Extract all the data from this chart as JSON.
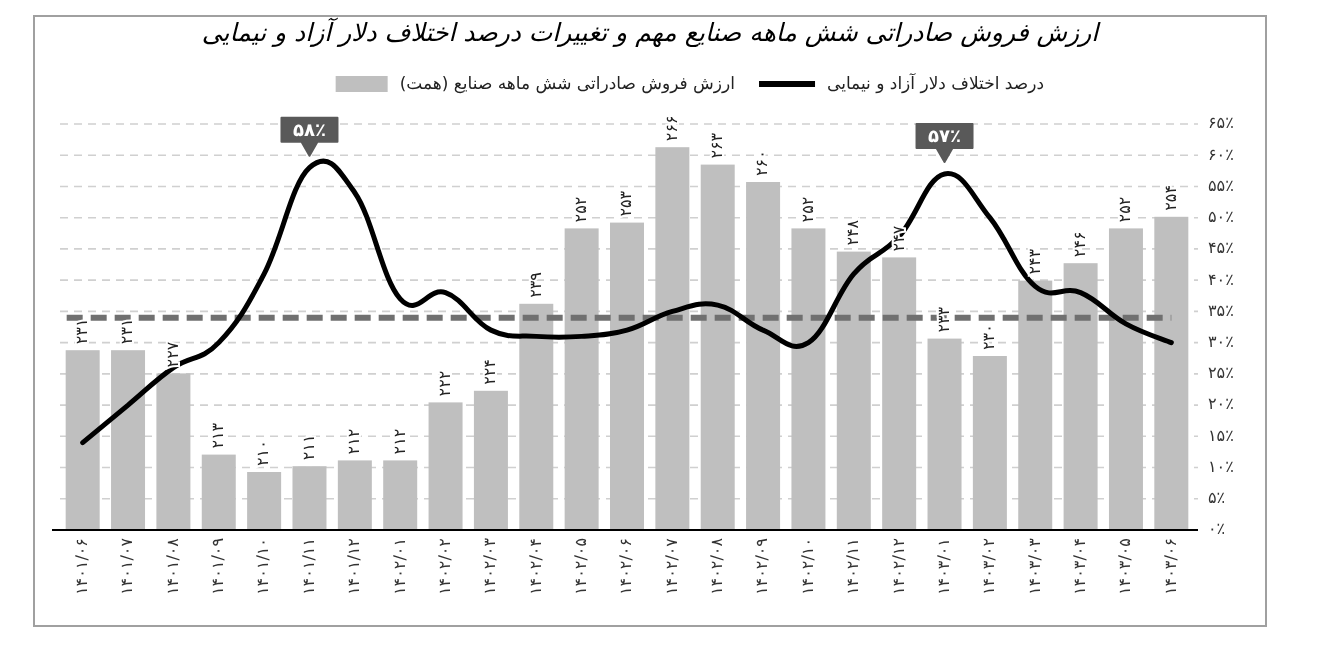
{
  "chart_data": {
    "type": "bar",
    "title": "ارزش فروش صادراتی شش ماهه صنایع مهم و تغییرات درصد اختلاف دلار آزاد و نیمایی",
    "categories": [
      "۱۴۰۱/۰۶",
      "۱۴۰۱/۰۷",
      "۱۴۰۱/۰۸",
      "۱۴۰۱/۰۹",
      "۱۴۰۱/۱۰",
      "۱۴۰۱/۱۱",
      "۱۴۰۱/۱۲",
      "۱۴۰۲/۰۱",
      "۱۴۰۲/۰۲",
      "۱۴۰۲/۰۳",
      "۱۴۰۲/۰۴",
      "۱۴۰۲/۰۵",
      "۱۴۰۲/۰۶",
      "۱۴۰۲/۰۷",
      "۱۴۰۲/۰۸",
      "۱۴۰۲/۰۹",
      "۱۴۰۲/۱۰",
      "۱۴۰۲/۱۱",
      "۱۴۰۲/۱۲",
      "۱۴۰۳/۰۱",
      "۱۴۰۳/۰۲",
      "۱۴۰۳/۰۳",
      "۱۴۰۳/۰۴",
      "۱۴۰۳/۰۵",
      "۱۴۰۳/۰۶"
    ],
    "series": [
      {
        "name": "درصد اختلاف دلار آزاد و نیمایی",
        "type": "line",
        "axis": "y2",
        "color": "#000000",
        "values": [
          14,
          20,
          26,
          30,
          41,
          58,
          54,
          37,
          38,
          32,
          31,
          31,
          32,
          35,
          36,
          32,
          30,
          41,
          47,
          57,
          50,
          39,
          38,
          33,
          30
        ]
      },
      {
        "name": "ارزش فروش صادراتی شش ماهه صنایع (همت)",
        "color": "#bfbfbf",
        "values": [
          231,
          231,
          227,
          213,
          210,
          211,
          212,
          212,
          222,
          224,
          239,
          252,
          253,
          266,
          263,
          260,
          252,
          248,
          247,
          233,
          230,
          243,
          246,
          252,
          254
        ],
        "value_labels": [
          "۲۳۱",
          "۲۳۱",
          "۲۲۷",
          "۲۱۳",
          "۲۱۰",
          "۲۱۱",
          "۲۱۲",
          "۲۱۲",
          "۲۲۲",
          "۲۲۴",
          "۲۳۹",
          "۲۵۲",
          "۲۵۳",
          "۲۶۶",
          "۲۶۳",
          "۲۶۰",
          "۲۵۲",
          "۲۴۸",
          "۲۴۷",
          "۲۳۳",
          "۲۳۰",
          "۲۴۳",
          "۲۴۶",
          "۲۵۲",
          "۲۵۴"
        ]
      }
    ],
    "ylim": [
      200,
      270
    ],
    "y2lim": [
      0,
      65
    ],
    "y2ticks": [
      {
        "value": 0,
        "label": "۰٪"
      },
      {
        "value": 5,
        "label": "۵٪"
      },
      {
        "value": 10,
        "label": "۱۰٪"
      },
      {
        "value": 15,
        "label": "۱۵٪"
      },
      {
        "value": 20,
        "label": "۲۰٪"
      },
      {
        "value": 25,
        "label": "۲۵٪"
      },
      {
        "value": 30,
        "label": "۳۰٪"
      },
      {
        "value": 35,
        "label": "۳۵٪"
      },
      {
        "value": 40,
        "label": "۴۰٪"
      },
      {
        "value": 45,
        "label": "۴۵٪"
      },
      {
        "value": 50,
        "label": "۵۰٪"
      },
      {
        "value": 55,
        "label": "۵۵٪"
      },
      {
        "value": 60,
        "label": "۶۰٪"
      },
      {
        "value": 65,
        "label": "۶۵٪"
      }
    ],
    "ref_lines": [
      {
        "axis": "y2",
        "value": 34,
        "color": "#707070",
        "line_style": "dashed"
      }
    ],
    "annotations": [
      "۵۸٪",
      "۵۷٪"
    ],
    "grid": "y",
    "legend": "top",
    "marker": "none",
    "line_style": "solid"
  }
}
